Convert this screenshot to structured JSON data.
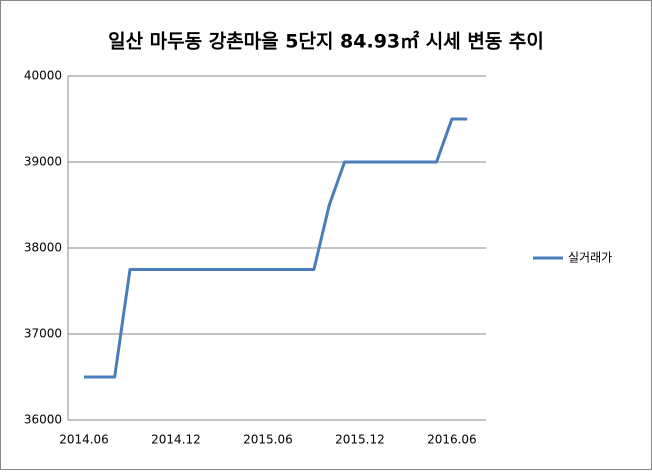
{
  "chart_data": {
    "type": "line",
    "title": "일산 마두동 강촌마을 5단지 84.93㎡ 시세 변동 추이",
    "categories": [
      "2014.06",
      null,
      null,
      null,
      null,
      null,
      "2014.12",
      null,
      null,
      null,
      null,
      null,
      "2015.06",
      null,
      null,
      null,
      null,
      null,
      "2015.12",
      null,
      null,
      null,
      null,
      null,
      "2016.06",
      null
    ],
    "series": [
      {
        "name": "실거래가",
        "color": "#4a7ebb",
        "values": [
          36500,
          36500,
          36500,
          37750,
          37750,
          37750,
          37750,
          37750,
          37750,
          37750,
          37750,
          37750,
          37750,
          37750,
          37750,
          37750,
          38500,
          39000,
          39000,
          39000,
          39000,
          39000,
          39000,
          39000,
          39500,
          39500
        ]
      }
    ],
    "ylim": [
      36000,
      40000
    ],
    "yticks": [
      36000,
      37000,
      38000,
      39000,
      40000
    ],
    "grid": true,
    "legend": "right"
  }
}
